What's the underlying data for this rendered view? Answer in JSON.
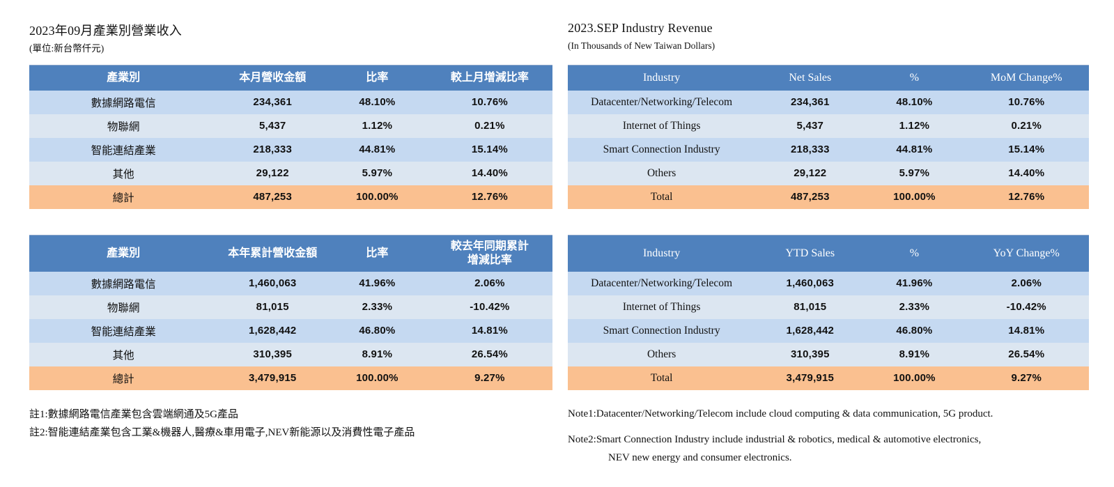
{
  "colors": {
    "header_bg": "#4f81bd",
    "header_text": "#ffffff",
    "row_light_blue": "#c5d9f1",
    "row_pale_blue": "#dce6f1",
    "total_row_orange": "#fac090"
  },
  "left": {
    "title": "2023年09月產業別營業收入",
    "subtitle": "(單位:新台幣仟元)",
    "month_table": {
      "headers": [
        "產業別",
        "本月營收金額",
        "比率",
        "較上月增減比率"
      ],
      "rows": [
        [
          "數據網路電信",
          "234,361",
          "48.10%",
          "10.76%"
        ],
        [
          "物聯網",
          "5,437",
          "1.12%",
          "0.21%"
        ],
        [
          "智能連結產業",
          "218,333",
          "44.81%",
          "15.14%"
        ],
        [
          "其他",
          "29,122",
          "5.97%",
          "14.40%"
        ]
      ],
      "total": [
        "總計",
        "487,253",
        "100.00%",
        "12.76%"
      ]
    },
    "ytd_table": {
      "headers": [
        "產業別",
        "本年累計營收金額",
        "比率",
        "較去年同期累計\n增減比率"
      ],
      "rows": [
        [
          "數據網路電信",
          "1,460,063",
          "41.96%",
          "2.06%"
        ],
        [
          "物聯網",
          "81,015",
          "2.33%",
          "-10.42%"
        ],
        [
          "智能連結產業",
          "1,628,442",
          "46.80%",
          "14.81%"
        ],
        [
          "其他",
          "310,395",
          "8.91%",
          "26.54%"
        ]
      ],
      "total": [
        "總計",
        "3,479,915",
        "100.00%",
        "9.27%"
      ]
    },
    "notes": {
      "note1": "註1:數據網路電信產業包含雲端網通及5G產品",
      "note2": "註2:智能連結產業包含工業&機器人,醫療&車用電子,NEV新能源以及消費性電子產品"
    }
  },
  "right": {
    "title": "2023.SEP Industry Revenue",
    "subtitle": "(In Thousands of New Taiwan Dollars)",
    "month_table": {
      "headers": [
        "Industry",
        "Net Sales",
        "%",
        "MoM Change%"
      ],
      "rows": [
        [
          "Datacenter/Networking/Telecom",
          "234,361",
          "48.10%",
          "10.76%"
        ],
        [
          "Internet of Things",
          "5,437",
          "1.12%",
          "0.21%"
        ],
        [
          "Smart Connection Industry",
          "218,333",
          "44.81%",
          "15.14%"
        ],
        [
          "Others",
          "29,122",
          "5.97%",
          "14.40%"
        ]
      ],
      "total": [
        "Total",
        "487,253",
        "100.00%",
        "12.76%"
      ]
    },
    "ytd_table": {
      "headers": [
        "Industry",
        "YTD Sales",
        "%",
        "YoY Change%"
      ],
      "rows": [
        [
          "Datacenter/Networking/Telecom",
          "1,460,063",
          "41.96%",
          "2.06%"
        ],
        [
          "Internet of Things",
          "81,015",
          "2.33%",
          "-10.42%"
        ],
        [
          "Smart Connection Industry",
          "1,628,442",
          "46.80%",
          "14.81%"
        ],
        [
          "Others",
          "310,395",
          "8.91%",
          "26.54%"
        ]
      ],
      "total": [
        "Total",
        "3,479,915",
        "100.00%",
        "9.27%"
      ]
    },
    "notes": {
      "note1": "Note1:Datacenter/Networking/Telecom include cloud computing & data communication, 5G product.",
      "note2_line1": "Note2:Smart Connection Industry include industrial & robotics, medical & automotive electronics,",
      "note2_line2": "NEV new energy and consumer electronics."
    }
  }
}
